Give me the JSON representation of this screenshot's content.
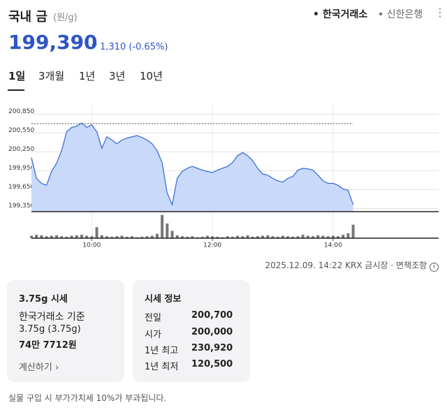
{
  "header": {
    "title": "국내 금",
    "unit": "(원/g)",
    "sources": [
      "한국거래소",
      "신한은행"
    ]
  },
  "price": {
    "value": "199,390",
    "change": "1,310",
    "change_pct": "(-0.65%)"
  },
  "tabs": [
    "1일",
    "3개월",
    "1년",
    "3년",
    "10년"
  ],
  "chart_data": {
    "type": "line",
    "color": "#3d6fd6",
    "fill": "#c8d9fa",
    "x": [
      540,
      545,
      550,
      555,
      560,
      565,
      570,
      575,
      580,
      585,
      590,
      595,
      600,
      605,
      610,
      615,
      620,
      625,
      630,
      635,
      640,
      645,
      650,
      655,
      660,
      665,
      670,
      675,
      680,
      685,
      690,
      695,
      700,
      705,
      710,
      715,
      720,
      725,
      730,
      735,
      740,
      745,
      750,
      755,
      760,
      765,
      770,
      775,
      780,
      785,
      790,
      795,
      800,
      805,
      810,
      815,
      820,
      825,
      830,
      835,
      840,
      845,
      850,
      855,
      860
    ],
    "values": [
      200160,
      199830,
      199750,
      199720,
      199940,
      200070,
      200270,
      200570,
      200640,
      200660,
      200710,
      200640,
      200680,
      200570,
      200310,
      200490,
      200440,
      200380,
      200440,
      200470,
      200490,
      200510,
      200480,
      200440,
      200380,
      200270,
      200080,
      199600,
      199410,
      199830,
      199940,
      199990,
      200020,
      199990,
      199960,
      199940,
      199920,
      199960,
      199990,
      200020,
      200080,
      200190,
      200240,
      200190,
      200110,
      199990,
      199900,
      199880,
      199830,
      199790,
      199770,
      199830,
      199860,
      199960,
      199990,
      199980,
      199960,
      199880,
      199790,
      199750,
      199750,
      199720,
      199660,
      199640,
      199410
    ],
    "xlim": [
      540,
      945
    ],
    "xticks": [
      {
        "value": 600,
        "label": "10:00"
      },
      {
        "value": 720,
        "label": "12:00"
      },
      {
        "value": 840,
        "label": "14:00"
      }
    ],
    "ylim": [
      199300,
      201000
    ],
    "yticks": [
      {
        "value": 200850,
        "label": "200,850"
      },
      {
        "value": 200550,
        "label": "200,550"
      },
      {
        "value": 200250,
        "label": "200,250"
      },
      {
        "value": 199950,
        "label": "199,950"
      },
      {
        "value": 199650,
        "label": "199,650"
      },
      {
        "value": 199350,
        "label": "199,350"
      }
    ],
    "grid": true,
    "reference_line": 200700,
    "volume": {
      "color": "#777777",
      "ylim": [
        0,
        100
      ],
      "values": [
        10,
        14,
        12,
        8,
        10,
        12,
        8,
        6,
        10,
        12,
        14,
        10,
        8,
        45,
        12,
        8,
        6,
        8,
        10,
        6,
        8,
        4,
        6,
        8,
        10,
        18,
        95,
        60,
        30,
        12,
        8,
        6,
        8,
        4,
        6,
        10,
        8,
        6,
        4,
        8,
        6,
        10,
        8,
        12,
        6,
        8,
        10,
        12,
        8,
        6,
        10,
        8,
        6,
        8,
        14,
        10,
        8,
        12,
        10,
        8,
        10,
        8,
        14,
        20,
        55
      ]
    }
  },
  "timestamp": "2025.12.09. 14:22 KRX 금시장",
  "disclaimer": "면책조항",
  "card_left": {
    "title": "3.75g 시세",
    "lines": [
      "한국거래소 기준",
      "3.75g (3.75g)"
    ],
    "amount": "74만 7712원",
    "link": "계산하기"
  },
  "card_right": {
    "title": "시세 정보",
    "rows": [
      [
        "전일",
        "200,700"
      ],
      [
        "시가",
        "200,000"
      ],
      [
        "1년 최고",
        "230,920"
      ],
      [
        "1년 최저",
        "120,500"
      ]
    ]
  },
  "footnote": "실물 구입 시 부가가치세 10%가 부과됩니다."
}
